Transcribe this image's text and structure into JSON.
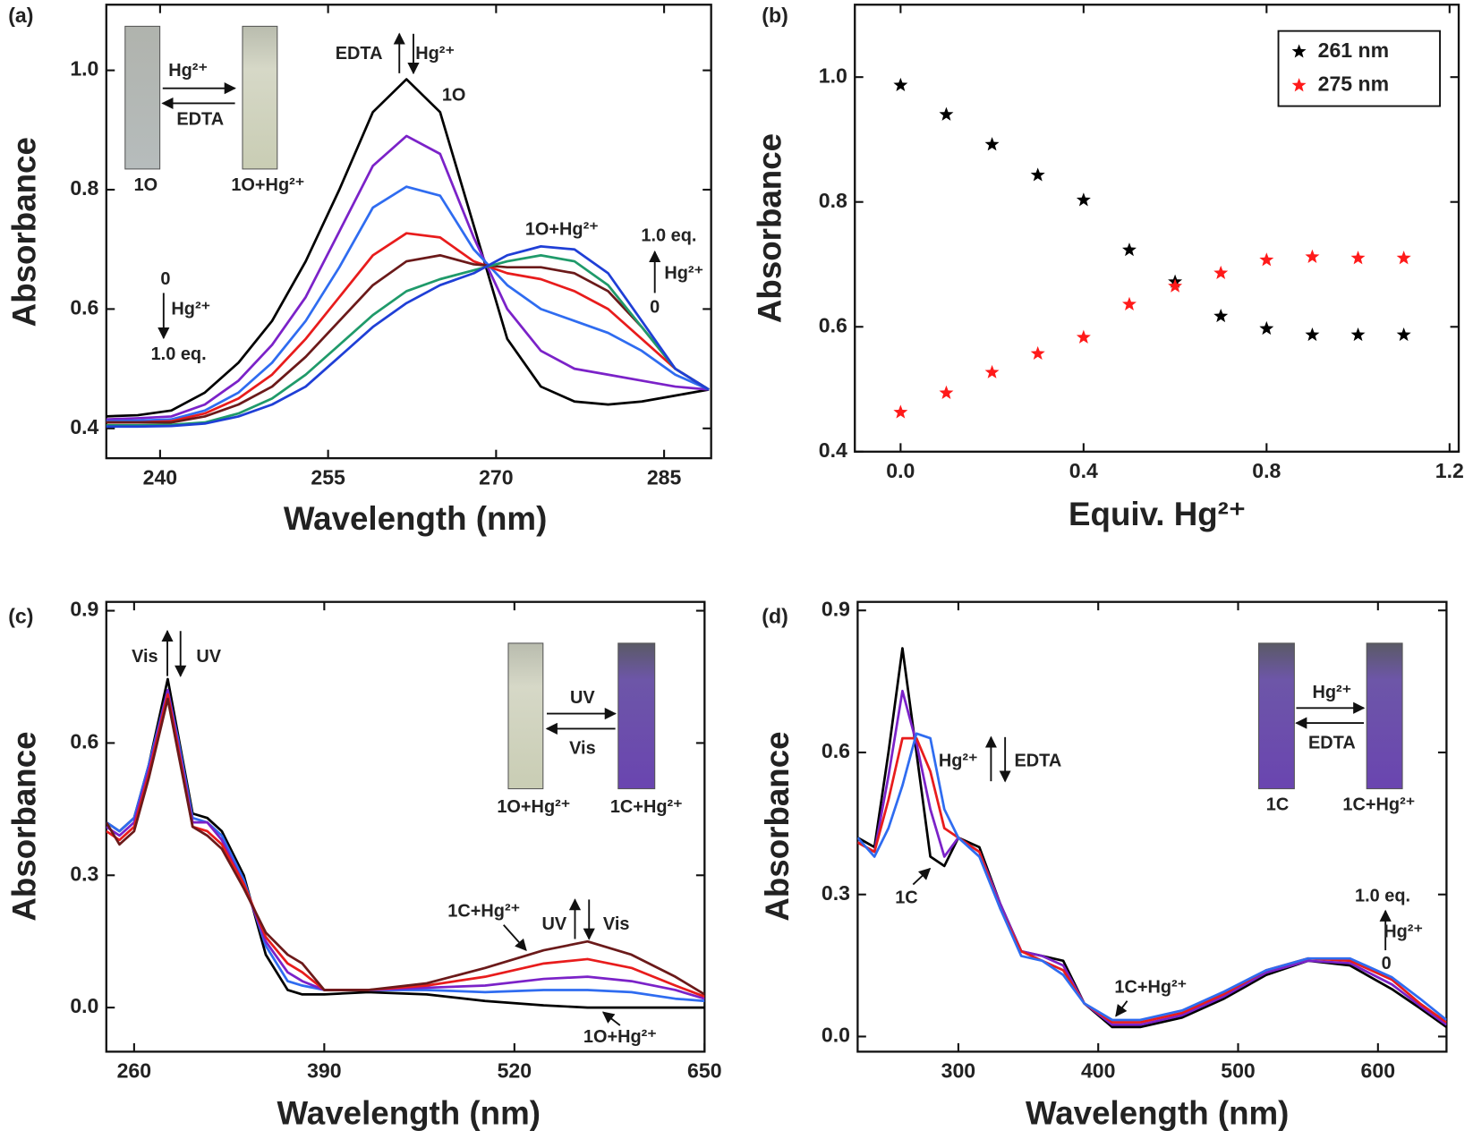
{
  "chart_data": [
    {
      "type": "line",
      "panel_label": "(a)",
      "xlabel": "Wavelength (nm)",
      "ylabel": "Absorbance",
      "xlim": [
        235.2,
        289.2
      ],
      "ylim": [
        0.35,
        1.11
      ],
      "xticks": [
        240,
        255,
        270,
        285
      ],
      "yticks": [
        0.4,
        0.6,
        0.8,
        {
          "value": 1,
          "label": "1.0"
        }
      ],
      "x": [
        235,
        238,
        241,
        244,
        247,
        250,
        253,
        256,
        259,
        262,
        265,
        268,
        271,
        274,
        277,
        280,
        283,
        286,
        289
      ],
      "series": [
        {
          "color": "#000000",
          "values": [
            0.42,
            0.422,
            0.43,
            0.46,
            0.51,
            0.58,
            0.68,
            0.8,
            0.93,
            0.985,
            0.93,
            0.74,
            0.55,
            0.47,
            0.445,
            0.44,
            0.445,
            0.455,
            0.465
          ]
        },
        {
          "color": "#7b22c8",
          "values": [
            0.415,
            0.417,
            0.42,
            0.44,
            0.48,
            0.54,
            0.62,
            0.73,
            0.84,
            0.89,
            0.86,
            0.72,
            0.6,
            0.53,
            0.5,
            0.49,
            0.48,
            0.47,
            0.465
          ]
        },
        {
          "color": "#2f6cf0",
          "values": [
            0.412,
            0.413,
            0.415,
            0.43,
            0.46,
            0.51,
            0.58,
            0.67,
            0.77,
            0.805,
            0.79,
            0.7,
            0.64,
            0.6,
            0.58,
            0.56,
            0.53,
            0.49,
            0.465
          ]
        },
        {
          "color": "#e81c1c",
          "values": [
            0.41,
            0.41,
            0.412,
            0.425,
            0.45,
            0.49,
            0.55,
            0.62,
            0.69,
            0.727,
            0.72,
            0.68,
            0.66,
            0.65,
            0.63,
            0.6,
            0.55,
            0.5,
            0.465
          ]
        },
        {
          "color": "#6b1a1a",
          "values": [
            0.41,
            0.41,
            0.41,
            0.42,
            0.44,
            0.47,
            0.52,
            0.58,
            0.64,
            0.68,
            0.69,
            0.675,
            0.67,
            0.67,
            0.66,
            0.63,
            0.57,
            0.5,
            0.465
          ]
        },
        {
          "color": "#1f9a6a",
          "values": [
            0.405,
            0.405,
            0.406,
            0.41,
            0.425,
            0.45,
            0.49,
            0.54,
            0.59,
            0.63,
            0.65,
            0.665,
            0.68,
            0.69,
            0.68,
            0.64,
            0.57,
            0.5,
            0.465
          ]
        },
        {
          "color": "#1f3fd6",
          "values": [
            0.403,
            0.403,
            0.404,
            0.408,
            0.42,
            0.44,
            0.47,
            0.52,
            0.57,
            0.61,
            0.64,
            0.66,
            0.69,
            0.705,
            0.7,
            0.66,
            0.58,
            0.5,
            0.465
          ]
        }
      ],
      "annotations": [
        "EDTA",
        "Hg²⁺",
        "1O",
        "1O+Hg²⁺",
        "1.0 eq.",
        "Hg²⁺",
        "0",
        "0",
        "Hg²⁺",
        "1.0 eq.",
        "Hg²⁺",
        "EDTA",
        "1O",
        "1O+Hg²⁺"
      ]
    },
    {
      "type": "scatter",
      "panel_label": "(b)",
      "xlabel": "Equiv. Hg²⁺",
      "ylabel": "Absorbance",
      "xlim": [
        -0.1,
        1.22
      ],
      "ylim": [
        0.4,
        1.116
      ],
      "xticks": [
        {
          "value": 0,
          "label": "0.0"
        },
        0.4,
        0.8,
        1.2
      ],
      "yticks": [
        0.4,
        0.6,
        0.8,
        {
          "value": 1,
          "label": "1.0"
        }
      ],
      "legend": "upper right",
      "x": [
        0,
        0.1,
        0.2,
        0.3,
        0.4,
        0.5,
        0.6,
        0.7,
        0.8,
        0.9,
        1,
        1.1
      ],
      "series": [
        {
          "name": "261 nm",
          "color": "#000000",
          "values": [
            0.987,
            0.94,
            0.892,
            0.843,
            0.803,
            0.723,
            0.672,
            0.617,
            0.597,
            0.587,
            0.587,
            0.587
          ]
        },
        {
          "name": "275 nm",
          "color": "#ff1a1a",
          "values": [
            0.463,
            0.494,
            0.527,
            0.557,
            0.583,
            0.636,
            0.665,
            0.686,
            0.707,
            0.712,
            0.71,
            0.71
          ]
        }
      ]
    },
    {
      "type": "line",
      "panel_label": "(c)",
      "xlabel": "Wavelength (nm)",
      "ylabel": "Absorbance",
      "xlim": [
        241,
        650
      ],
      "ylim": [
        -0.1,
        0.92
      ],
      "xticks": [
        260,
        390,
        520,
        650
      ],
      "yticks": [
        {
          "value": 0,
          "label": "0.0"
        },
        0.3,
        0.6,
        0.9
      ],
      "x": [
        241,
        250,
        260,
        270,
        283,
        290,
        300,
        310,
        320,
        335,
        350,
        365,
        375,
        390,
        420,
        460,
        500,
        540,
        570,
        600,
        630,
        650
      ],
      "series": [
        {
          "color": "#000000",
          "values": [
            0.42,
            0.4,
            0.43,
            0.55,
            0.745,
            0.62,
            0.44,
            0.43,
            0.4,
            0.3,
            0.12,
            0.04,
            0.03,
            0.03,
            0.035,
            0.03,
            0.015,
            0.005,
            0,
            0,
            0,
            0
          ]
        },
        {
          "color": "#2f6cf0",
          "values": [
            0.42,
            0.4,
            0.43,
            0.55,
            0.72,
            0.61,
            0.43,
            0.42,
            0.39,
            0.29,
            0.14,
            0.06,
            0.05,
            0.04,
            0.04,
            0.04,
            0.035,
            0.04,
            0.04,
            0.035,
            0.02,
            0.015
          ]
        },
        {
          "color": "#7b22c8",
          "values": [
            0.41,
            0.39,
            0.42,
            0.54,
            0.72,
            0.6,
            0.42,
            0.42,
            0.38,
            0.28,
            0.15,
            0.08,
            0.06,
            0.04,
            0.04,
            0.045,
            0.05,
            0.065,
            0.07,
            0.06,
            0.04,
            0.02
          ]
        },
        {
          "color": "#e81c1c",
          "values": [
            0.4,
            0.38,
            0.41,
            0.53,
            0.71,
            0.59,
            0.41,
            0.4,
            0.37,
            0.28,
            0.16,
            0.1,
            0.08,
            0.04,
            0.04,
            0.05,
            0.07,
            0.1,
            0.11,
            0.09,
            0.05,
            0.025
          ]
        },
        {
          "color": "#6b1a1a",
          "values": [
            0.42,
            0.37,
            0.4,
            0.52,
            0.7,
            0.58,
            0.41,
            0.39,
            0.36,
            0.27,
            0.17,
            0.12,
            0.1,
            0.04,
            0.04,
            0.055,
            0.09,
            0.13,
            0.15,
            0.12,
            0.07,
            0.03
          ]
        }
      ],
      "annotations": [
        "Vis",
        "UV",
        "1C+Hg²⁺",
        "UV",
        "Vis",
        "1O+Hg²⁺",
        "UV",
        "Vis",
        "1O+Hg²⁺",
        "1C+Hg²⁺"
      ]
    },
    {
      "type": "line",
      "panel_label": "(d)",
      "xlabel": "Wavelength (nm)",
      "ylabel": "Absorbance",
      "xlim": [
        228,
        649
      ],
      "ylim": [
        -0.032,
        0.918
      ],
      "xticks": [
        300,
        400,
        500,
        600
      ],
      "yticks": [
        {
          "value": 0,
          "label": "0.0"
        },
        0.3,
        0.6,
        0.9
      ],
      "x": [
        228,
        240,
        250,
        260,
        270,
        280,
        290,
        300,
        315,
        330,
        345,
        360,
        375,
        390,
        410,
        430,
        460,
        490,
        520,
        550,
        580,
        610,
        630,
        649
      ],
      "series": [
        {
          "color": "#000000",
          "values": [
            0.42,
            0.4,
            0.6,
            0.82,
            0.6,
            0.38,
            0.36,
            0.42,
            0.4,
            0.28,
            0.18,
            0.17,
            0.16,
            0.07,
            0.02,
            0.02,
            0.04,
            0.08,
            0.13,
            0.16,
            0.15,
            0.1,
            0.06,
            0.02
          ]
        },
        {
          "color": "#7b22c8",
          "values": [
            0.41,
            0.39,
            0.55,
            0.73,
            0.62,
            0.48,
            0.38,
            0.42,
            0.39,
            0.28,
            0.18,
            0.17,
            0.15,
            0.07,
            0.025,
            0.025,
            0.045,
            0.085,
            0.135,
            0.16,
            0.155,
            0.11,
            0.065,
            0.025
          ]
        },
        {
          "color": "#e81c1c",
          "values": [
            0.41,
            0.39,
            0.5,
            0.63,
            0.63,
            0.56,
            0.44,
            0.42,
            0.39,
            0.27,
            0.18,
            0.16,
            0.14,
            0.07,
            0.03,
            0.03,
            0.05,
            0.09,
            0.14,
            0.165,
            0.16,
            0.12,
            0.07,
            0.03
          ]
        },
        {
          "color": "#2f6cf0",
          "values": [
            0.42,
            0.38,
            0.44,
            0.53,
            0.64,
            0.63,
            0.48,
            0.42,
            0.38,
            0.27,
            0.17,
            0.16,
            0.13,
            0.07,
            0.035,
            0.035,
            0.055,
            0.095,
            0.14,
            0.165,
            0.165,
            0.125,
            0.08,
            0.035
          ]
        }
      ],
      "annotations": [
        "Hg²⁺",
        "EDTA",
        "1C",
        "1C+Hg²⁺",
        "1.0 eq.",
        "Hg²⁺",
        "0",
        "Hg²⁺",
        "EDTA",
        "1C",
        "1C+Hg²⁺"
      ]
    }
  ]
}
